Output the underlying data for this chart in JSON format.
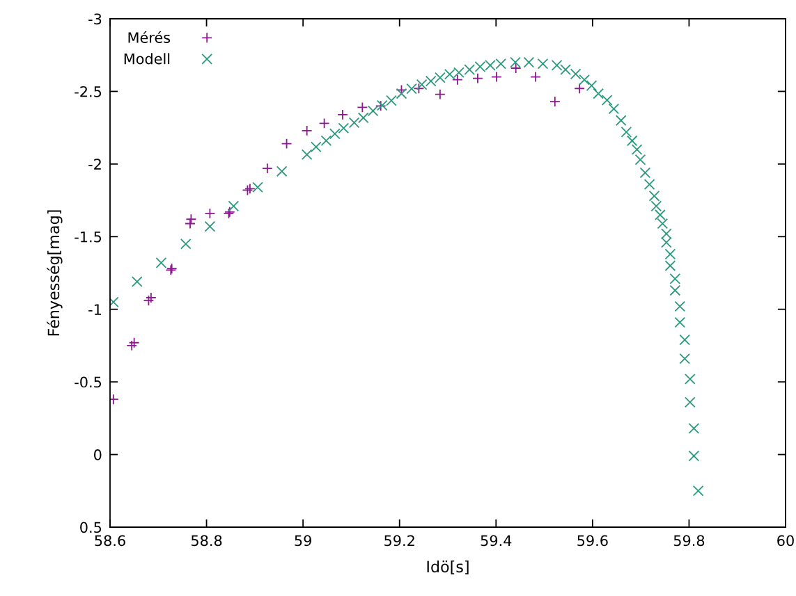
{
  "chart_data": {
    "type": "scatter",
    "xlabel": "Idö[s]",
    "ylabel": "Fényesség[mag]",
    "xlim": [
      58.6,
      60
    ],
    "xticks": [
      58.6,
      58.8,
      59,
      59.2,
      59.4,
      59.6,
      59.8,
      60
    ],
    "ylim": [
      0.5,
      -3
    ],
    "yticks": [
      -3,
      -2.5,
      -2,
      -1.5,
      -1,
      -0.5,
      0,
      0.5
    ],
    "grid": false,
    "legend": "top left",
    "series": [
      {
        "name": "Mérés",
        "color": "#8b1a8f",
        "marker": "plus",
        "x": [
          58.607,
          58.645,
          58.65,
          58.68,
          58.685,
          58.726,
          58.728,
          58.766,
          58.768,
          58.807,
          58.846,
          58.848,
          58.885,
          58.89,
          58.926,
          58.966,
          59.008,
          59.044,
          59.082,
          59.123,
          59.161,
          59.204,
          59.24,
          59.284,
          59.32,
          59.362,
          59.401,
          59.441,
          59.482,
          59.522,
          59.573
        ],
        "values": [
          -0.38,
          -0.75,
          -0.77,
          -1.06,
          -1.08,
          -1.27,
          -1.28,
          -1.59,
          -1.62,
          -1.66,
          -1.66,
          -1.67,
          -1.82,
          -1.83,
          -1.97,
          -2.14,
          -2.23,
          -2.28,
          -2.34,
          -2.39,
          -2.4,
          -2.51,
          -2.52,
          -2.48,
          -2.58,
          -2.59,
          -2.6,
          -2.66,
          -2.6,
          -2.43,
          -2.52
        ]
      },
      {
        "name": "Modell",
        "color": "#2a9a7e",
        "marker": "cross",
        "x": [
          58.607,
          58.656,
          58.706,
          58.757,
          58.807,
          58.856,
          58.906,
          58.956,
          59.008,
          59.027,
          59.048,
          59.066,
          59.084,
          59.106,
          59.125,
          59.145,
          59.164,
          59.183,
          59.204,
          59.225,
          59.246,
          59.265,
          59.284,
          59.304,
          59.323,
          59.345,
          59.367,
          59.388,
          59.41,
          59.44,
          59.468,
          59.497,
          59.526,
          59.544,
          59.565,
          59.583,
          59.598,
          59.612,
          59.63,
          59.644,
          59.659,
          59.67,
          59.682,
          59.692,
          59.699,
          59.709,
          59.718,
          59.728,
          59.732,
          59.74,
          59.745,
          59.753,
          59.753,
          59.761,
          59.761,
          59.771,
          59.771,
          59.781,
          59.781,
          59.791,
          59.791,
          59.802,
          59.802,
          59.81,
          59.81,
          59.819
        ],
        "values": [
          -1.05,
          -1.19,
          -1.32,
          -1.45,
          -1.57,
          -1.71,
          -1.84,
          -1.95,
          -2.065,
          -2.118,
          -2.161,
          -2.208,
          -2.247,
          -2.285,
          -2.318,
          -2.366,
          -2.404,
          -2.437,
          -2.485,
          -2.518,
          -2.547,
          -2.571,
          -2.595,
          -2.618,
          -2.63,
          -2.65,
          -2.67,
          -2.68,
          -2.69,
          -2.7,
          -2.7,
          -2.69,
          -2.68,
          -2.65,
          -2.62,
          -2.58,
          -2.54,
          -2.485,
          -2.44,
          -2.38,
          -2.3,
          -2.22,
          -2.16,
          -2.1,
          -2.03,
          -1.94,
          -1.86,
          -1.78,
          -1.71,
          -1.65,
          -1.59,
          -1.52,
          -1.46,
          -1.38,
          -1.3,
          -1.21,
          -1.13,
          -1.02,
          -0.91,
          -0.79,
          -0.66,
          -0.52,
          -0.36,
          -0.18,
          0.01,
          0.25
        ]
      }
    ]
  }
}
